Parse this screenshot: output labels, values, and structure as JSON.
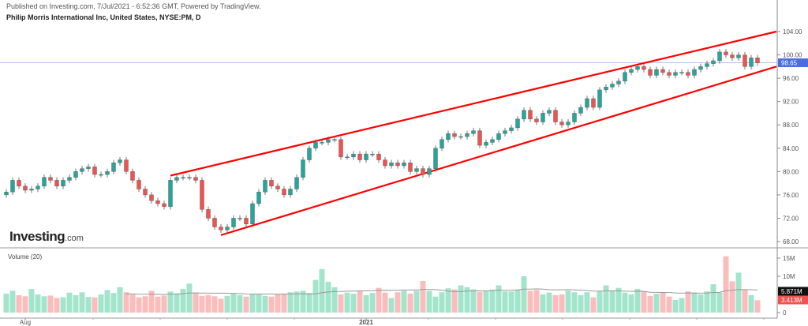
{
  "header": {
    "published": "Published on Investing.com, 7/Jul/2021 - 6:52:36 GMT, Powered by TradingView.",
    "symbol_title": "Philip Morris International Inc, United States, NYSE:PM, D"
  },
  "logo": {
    "main": "Investing",
    "suffix": ".com"
  },
  "volume_panel": {
    "title": "Volume (20)",
    "ma_label": "5.871M",
    "last_label": "3.413M",
    "ylabels": [
      "15M",
      "10M",
      "0"
    ],
    "yvalues": [
      15,
      10,
      0
    ]
  },
  "colors": {
    "up": "#26a69a",
    "down": "#ef5350",
    "up_vol": "#a3e4cc",
    "down_vol": "#fbbcbc",
    "trendline": "#ff0000",
    "last_price": "#4a6ee0",
    "ma": "#999999"
  },
  "chart_data": {
    "type": "candlestick",
    "title": "Philip Morris International Inc, United States, NYSE:PM, D",
    "ylim": [
      68,
      104
    ],
    "yticks": [
      "104.00",
      "100.00",
      "96.00",
      "92.00",
      "88.00",
      "84.00",
      "80.00",
      "76.00",
      "72.00",
      "68.00"
    ],
    "ytick_values": [
      104,
      100,
      96,
      92,
      88,
      84,
      80,
      76,
      72,
      68
    ],
    "xticks": [
      {
        "label": "Aug",
        "index": 3
      },
      {
        "label": "2021",
        "index": 57
      }
    ],
    "last_price": 98.65,
    "last_price_label": "98.65",
    "first_open": 76,
    "closes": [
      76.5,
      78.5,
      77.5,
      76.8,
      77,
      77.5,
      79,
      78.5,
      77.5,
      78.5,
      79,
      80,
      80.5,
      80.8,
      79.5,
      79.5,
      80,
      81.5,
      82,
      80,
      78.5,
      77,
      76,
      75,
      74.5,
      74,
      78.5,
      79,
      79,
      79,
      78.5,
      73.5,
      72,
      70.5,
      70,
      70.5,
      72,
      72,
      71,
      74.5,
      76.5,
      78.5,
      77.5,
      77,
      76,
      77,
      79,
      82,
      84,
      85,
      85,
      85.5,
      85.5,
      82.5,
      82.5,
      83,
      82,
      83,
      83,
      82,
      81,
      81.5,
      81,
      81.5,
      80,
      80.5,
      79.5,
      80.5,
      84,
      85.5,
      86.5,
      86,
      86,
      86.5,
      87,
      84.5,
      85,
      85.5,
      86.5,
      87,
      87.5,
      89,
      90.5,
      89,
      88.5,
      90,
      90.5,
      88.5,
      88,
      88.5,
      90,
      91,
      92.5,
      91,
      94,
      94.5,
      95,
      95.5,
      97,
      97.5,
      98,
      97.5,
      96.5,
      97.5,
      97,
      96.5,
      97,
      97,
      96.5,
      97.5,
      98,
      98.5,
      99,
      100.5,
      100,
      99.5,
      100,
      98,
      99.5,
      98.65
    ],
    "volume_millions": [
      5.2,
      6,
      4.8,
      4.5,
      6.5,
      5,
      4.5,
      4.7,
      4,
      4.2,
      5.5,
      4.8,
      5.6,
      4.3,
      4.2,
      5,
      6.2,
      5.4,
      7,
      5.6,
      5,
      4.2,
      4.5,
      6,
      4.4,
      4.7,
      5.8,
      5.3,
      6.5,
      8,
      5.5,
      4.6,
      4.8,
      4.5,
      3.8,
      4.6,
      5.2,
      4.8,
      4.4,
      5,
      5.1,
      4.6,
      4.4,
      5,
      5.2,
      5.6,
      5.8,
      6,
      5.4,
      9,
      12,
      8.5,
      7,
      5,
      5.5,
      5.2,
      6,
      4.8,
      5.4,
      6.8,
      5.5,
      4,
      5.6,
      6,
      5.2,
      6,
      8.7,
      6,
      4.4,
      5.6,
      6.7,
      6.4,
      7.5,
      7,
      6.4,
      5.7,
      6,
      6.3,
      7.5,
      5.8,
      5.8,
      6.3,
      10,
      6,
      6.2,
      5,
      5.5,
      4.8,
      5,
      6,
      5.6,
      4.8,
      5.6,
      4.2,
      5.8,
      7.5,
      6,
      6.8,
      5.5,
      5,
      6.5,
      5.8,
      4.6,
      5.2,
      5.5,
      4.4,
      3.5,
      4,
      5.8,
      5.5,
      5,
      5.8,
      7.8,
      5.5,
      15.5,
      8.6,
      11,
      6.2,
      4.8,
      3.4
    ],
    "trendlines": [
      {
        "name": "upper",
        "start_index": 26,
        "start_price": 79.3,
        "end_index": 122,
        "end_price": 104
      },
      {
        "name": "lower",
        "start_index": 34,
        "start_price": 69.1,
        "end_index": 122,
        "end_price": 98.0
      }
    ]
  }
}
